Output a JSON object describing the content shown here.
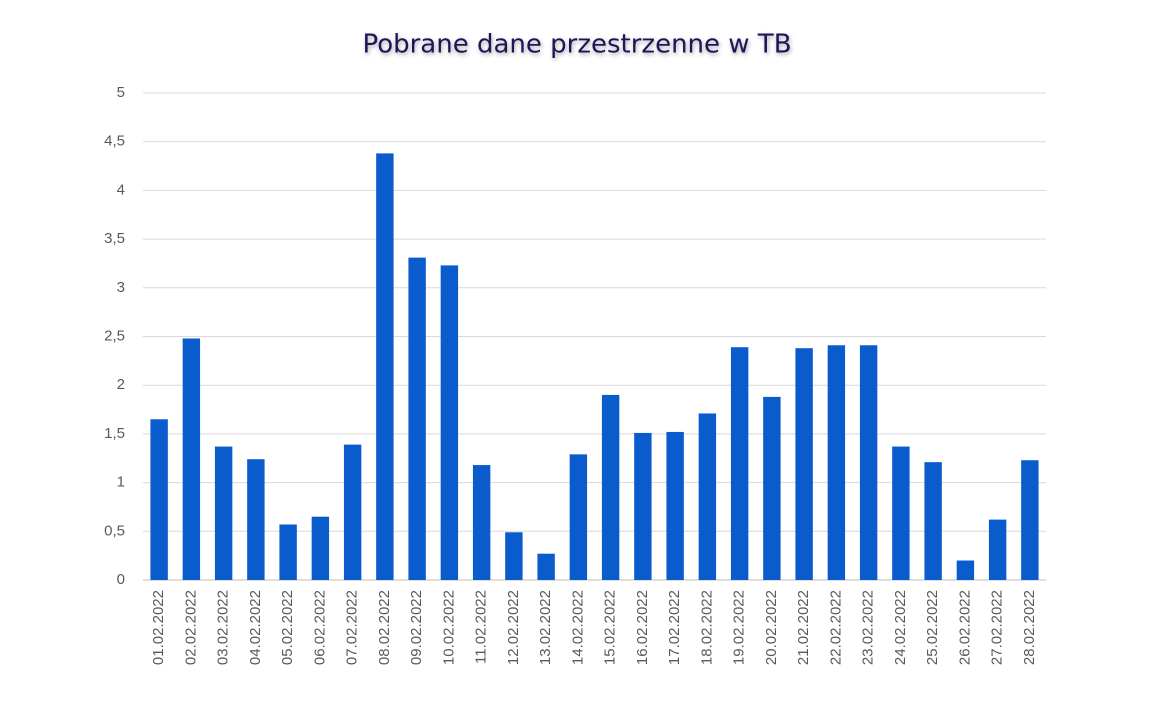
{
  "chart_data": {
    "type": "bar",
    "title": "Pobrane dane przestrzenne w TB",
    "categories": [
      "01.02.2022",
      "02.02.2022",
      "03.02.2022",
      "04.02.2022",
      "05.02.2022",
      "06.02.2022",
      "07.02.2022",
      "08.02.2022",
      "09.02.2022",
      "10.02.2022",
      "11.02.2022",
      "12.02.2022",
      "13.02.2022",
      "14.02.2022",
      "15.02.2022",
      "16.02.2022",
      "17.02.2022",
      "18.02.2022",
      "19.02.2022",
      "20.02.2022",
      "21.02.2022",
      "22.02.2022",
      "23.02.2022",
      "24.02.2022",
      "25.02.2022",
      "26.02.2022",
      "27.02.2022",
      "28.02.2022"
    ],
    "values": [
      1.65,
      2.48,
      1.37,
      1.24,
      0.57,
      0.65,
      1.39,
      4.38,
      3.31,
      3.23,
      1.18,
      0.49,
      0.27,
      1.29,
      1.9,
      1.51,
      1.52,
      1.71,
      2.39,
      1.88,
      2.38,
      2.41,
      2.41,
      1.37,
      1.21,
      0.2,
      0.62,
      1.23
    ],
    "color": "#0a5ccc",
    "ylim": [
      0,
      5
    ],
    "yticks": [
      0,
      {
        "value": 0.5,
        "label": "0,5"
      },
      1,
      {
        "value": 1.5,
        "label": "1,5"
      },
      2,
      {
        "value": 2.5,
        "label": "2,5"
      },
      3,
      {
        "value": 3.5,
        "label": "3,5"
      },
      4,
      {
        "value": 4.5,
        "label": "4,5"
      },
      5
    ],
    "grid": true
  }
}
